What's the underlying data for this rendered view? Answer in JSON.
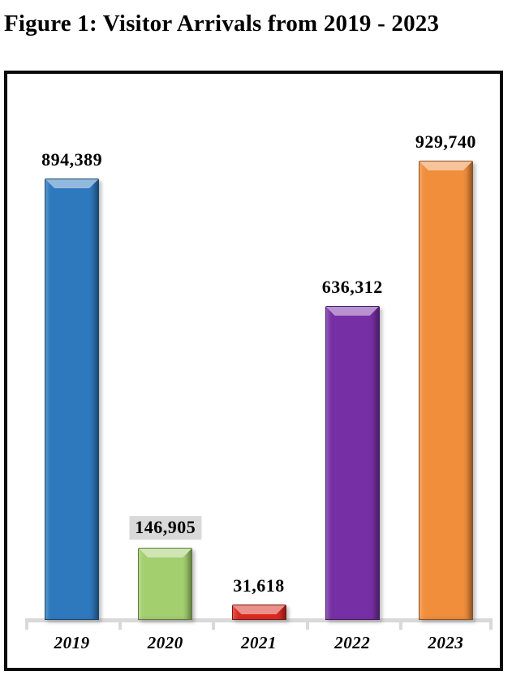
{
  "figure": {
    "title": "Figure 1: Visitor Arrivals from 2019 - 2023"
  },
  "chart_data": {
    "type": "bar",
    "title": "Figure 1: Visitor Arrivals from 2019 - 2023",
    "categories": [
      "2019",
      "2020",
      "2021",
      "2022",
      "2023"
    ],
    "values": [
      894389,
      146905,
      31618,
      636312,
      929740
    ],
    "data_labels": [
      "894,389",
      "146,905",
      "31,618",
      "636,312",
      "929,740"
    ],
    "bar_colors": [
      "#2E78BD",
      "#A3CF6E",
      "#DB2A20",
      "#762FA4",
      "#F08E3C"
    ],
    "highlighted_label_index": 1,
    "highlight_bg": "#D9D9D9",
    "xlabel": "",
    "ylabel": "",
    "ylim": [
      0,
      950000
    ],
    "grid": false,
    "legend_position": "none",
    "axis_line_color": "#D9D9D9",
    "bar_style": "3d-bevel"
  }
}
